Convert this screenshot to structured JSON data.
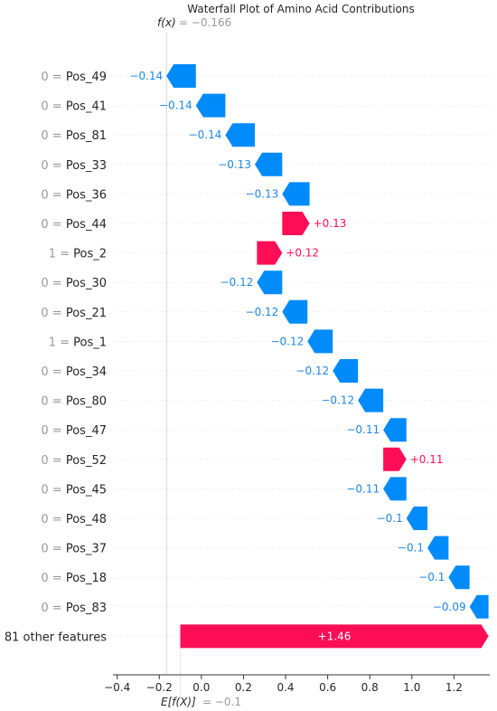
{
  "chart_data": {
    "type": "waterfall",
    "title": "Waterfall Plot of Amino Acid Contributions",
    "fx_label": "f(x)",
    "fx_value": "= −0.166",
    "ex_label": "E[f(X)]",
    "ex_value": "= −0.1",
    "base_value": -0.1,
    "final_value": -0.166,
    "xlim": [
      -0.42,
      1.37
    ],
    "xticks": [
      -0.4,
      -0.2,
      0.0,
      0.2,
      0.4,
      0.6,
      0.8,
      1.0,
      1.2
    ],
    "xtick_labels": [
      "−0.4",
      "−0.2",
      "0.0",
      "0.2",
      "0.4",
      "0.6",
      "0.8",
      "1.0",
      "1.2"
    ],
    "colors": {
      "positive": "#ff0d57",
      "negative": "#008bfb",
      "negative_text": "#1e88e5"
    },
    "features": [
      {
        "value_label": "0 =",
        "name": "Pos_49",
        "start": -0.166,
        "end": -0.026,
        "label": "−0.14"
      },
      {
        "value_label": "0 =",
        "name": "Pos_41",
        "start": -0.026,
        "end": 0.114,
        "label": "−0.14"
      },
      {
        "value_label": "0 =",
        "name": "Pos_81",
        "start": 0.114,
        "end": 0.254,
        "label": "−0.14"
      },
      {
        "value_label": "0 =",
        "name": "Pos_33",
        "start": 0.254,
        "end": 0.384,
        "label": "−0.13"
      },
      {
        "value_label": "0 =",
        "name": "Pos_36",
        "start": 0.384,
        "end": 0.514,
        "label": "−0.13"
      },
      {
        "value_label": "0 =",
        "name": "Pos_44",
        "start": 0.384,
        "end": 0.514,
        "label": "+0.13"
      },
      {
        "value_label": "1 =",
        "name": "Pos_2",
        "start": 0.264,
        "end": 0.384,
        "label": "+0.12"
      },
      {
        "value_label": "0 =",
        "name": "Pos_30",
        "start": 0.264,
        "end": 0.384,
        "label": "−0.12"
      },
      {
        "value_label": "0 =",
        "name": "Pos_21",
        "start": 0.384,
        "end": 0.504,
        "label": "−0.12"
      },
      {
        "value_label": "1 =",
        "name": "Pos_1",
        "start": 0.504,
        "end": 0.624,
        "label": "−0.12"
      },
      {
        "value_label": "0 =",
        "name": "Pos_34",
        "start": 0.624,
        "end": 0.744,
        "label": "−0.12"
      },
      {
        "value_label": "0 =",
        "name": "Pos_80",
        "start": 0.744,
        "end": 0.864,
        "label": "−0.12"
      },
      {
        "value_label": "0 =",
        "name": "Pos_47",
        "start": 0.864,
        "end": 0.974,
        "label": "−0.11"
      },
      {
        "value_label": "0 =",
        "name": "Pos_52",
        "start": 0.864,
        "end": 0.974,
        "label": "+0.11"
      },
      {
        "value_label": "0 =",
        "name": "Pos_45",
        "start": 0.864,
        "end": 0.974,
        "label": "−0.11"
      },
      {
        "value_label": "0 =",
        "name": "Pos_48",
        "start": 0.974,
        "end": 1.074,
        "label": "−0.1"
      },
      {
        "value_label": "0 =",
        "name": "Pos_37",
        "start": 1.074,
        "end": 1.174,
        "label": "−0.1"
      },
      {
        "value_label": "0 =",
        "name": "Pos_18",
        "start": 1.174,
        "end": 1.274,
        "label": "−0.1"
      },
      {
        "value_label": "0 =",
        "name": "Pos_83",
        "start": 1.274,
        "end": 1.364,
        "label": "−0.09"
      },
      {
        "value_label": "",
        "name": "81 other features",
        "start": -0.1,
        "end": 1.364,
        "label": "+1.46"
      }
    ]
  }
}
